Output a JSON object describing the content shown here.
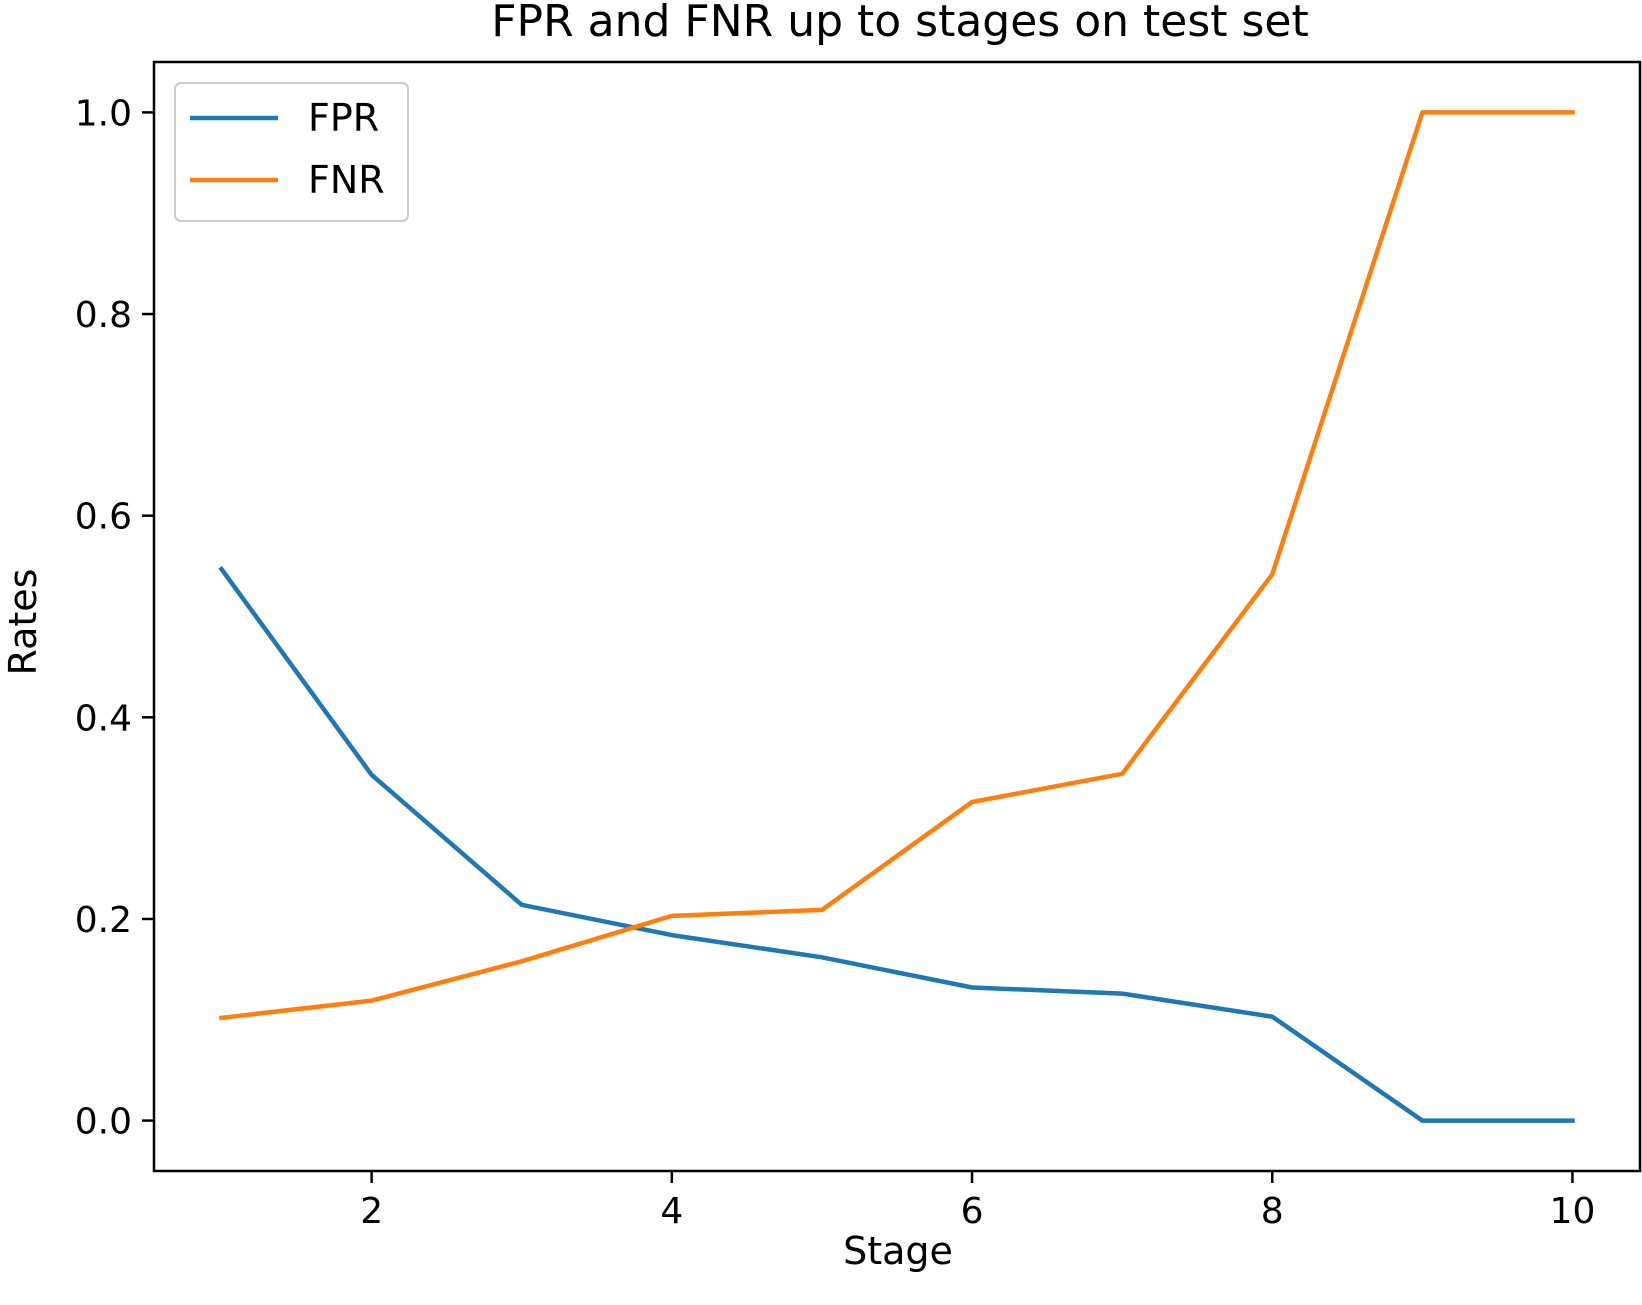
{
  "chart_data": {
    "type": "line",
    "title": "FPR and FNR up to stages on test set",
    "xlabel": "Stage",
    "ylabel": "Rates",
    "x": [
      1,
      2,
      3,
      4,
      5,
      6,
      7,
      8,
      9,
      10
    ],
    "xlim": [
      0.55,
      10.45
    ],
    "ylim": [
      -0.05,
      1.05
    ],
    "xticks": [
      2,
      4,
      6,
      8,
      10
    ],
    "xtick_labels": [
      "2",
      "4",
      "6",
      "8",
      "10"
    ],
    "yticks": [
      0.0,
      0.2,
      0.4,
      0.6,
      0.8,
      1.0
    ],
    "ytick_labels": [
      "0.0",
      "0.2",
      "0.4",
      "0.6",
      "0.8",
      "1.0"
    ],
    "grid": false,
    "legend_position": "upper-left",
    "series": [
      {
        "name": "FPR",
        "color": "#1f77b4",
        "values": [
          0.547,
          0.343,
          0.214,
          0.184,
          0.162,
          0.132,
          0.126,
          0.103,
          0.0,
          0.0
        ]
      },
      {
        "name": "FNR",
        "color": "#ff7f0e",
        "values": [
          0.102,
          0.119,
          0.158,
          0.203,
          0.209,
          0.316,
          0.344,
          0.542,
          1.0,
          1.0
        ]
      }
    ]
  }
}
